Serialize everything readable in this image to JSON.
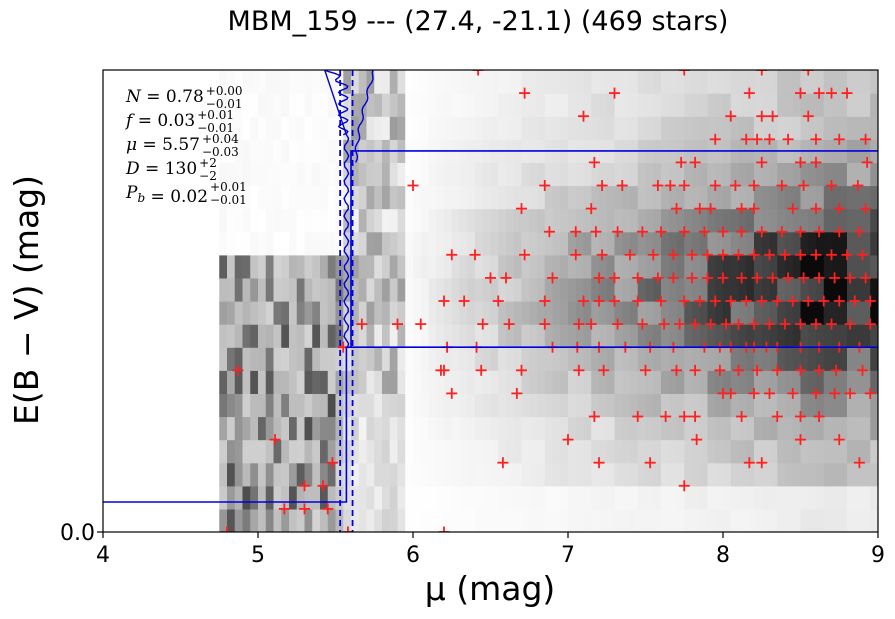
{
  "chart_data": {
    "type": "heatmap",
    "title": "MBM_159 --- (27.4, -21.1) (469 stars)",
    "xlabel": "μ (mag)",
    "ylabel": "E(B − V) (mag)",
    "xlim": [
      4,
      9
    ],
    "ylim": [
      0,
      1
    ],
    "x_ticks": [
      "4",
      "5",
      "6",
      "7",
      "8",
      "9"
    ],
    "y_ticks": [
      "0.0"
    ],
    "colormap": "greys",
    "marker_color": "#ff2020",
    "line_color": "#0000dd",
    "annotations": [
      {
        "sym": "N",
        "val": "0.78",
        "sup": "+0.00",
        "sub": "−0.01"
      },
      {
        "sym": "f",
        "val": "0.03",
        "sup": "+0.01",
        "sub": "−0.01"
      },
      {
        "sym": "μ",
        "val": "5.57",
        "sup": "+0.04",
        "sub": "−0.03"
      },
      {
        "sym": "D",
        "val": "130",
        "sup": "+2",
        "sub": "−2"
      },
      {
        "sym": "P_b",
        "val": "0.02",
        "sup": "+0.01",
        "sub": "−0.01"
      }
    ],
    "step_model": [
      {
        "mu": 4.0,
        "ebv": 0.065
      },
      {
        "mu": 5.57,
        "ebv": 0.065
      },
      {
        "mu": 5.57,
        "ebv": 0.4
      },
      {
        "mu": 9.0,
        "ebv": 0.4
      }
    ],
    "upper_step": [
      {
        "mu": 5.6,
        "ebv": 0.4
      },
      {
        "mu": 5.6,
        "ebv": 0.825
      },
      {
        "mu": 9.0,
        "ebv": 0.825
      }
    ],
    "mu_median": 5.57,
    "mu_bounds": [
      5.53,
      5.61
    ],
    "stars": [
      [
        4.8,
        0.0
      ],
      [
        6.2,
        0.0
      ],
      [
        5.58,
        0.0
      ],
      [
        5.17,
        0.05
      ],
      [
        5.3,
        0.05
      ],
      [
        5.45,
        0.05
      ],
      [
        5.3,
        0.1
      ],
      [
        5.42,
        0.1
      ],
      [
        7.75,
        0.1
      ],
      [
        5.48,
        0.15
      ],
      [
        6.58,
        0.15
      ],
      [
        7.2,
        0.15
      ],
      [
        7.53,
        0.15
      ],
      [
        8.17,
        0.15
      ],
      [
        8.25,
        0.15
      ],
      [
        8.88,
        0.15
      ],
      [
        5.11,
        0.2
      ],
      [
        7.0,
        0.2
      ],
      [
        7.83,
        0.2
      ],
      [
        8.5,
        0.2
      ],
      [
        8.75,
        0.2
      ],
      [
        7.17,
        0.25
      ],
      [
        7.45,
        0.25
      ],
      [
        7.63,
        0.25
      ],
      [
        7.75,
        0.25
      ],
      [
        7.82,
        0.25
      ],
      [
        8.12,
        0.25
      ],
      [
        8.35,
        0.25
      ],
      [
        8.5,
        0.25
      ],
      [
        8.62,
        0.25
      ],
      [
        6.25,
        0.3
      ],
      [
        6.67,
        0.3
      ],
      [
        8.0,
        0.3
      ],
      [
        8.05,
        0.3
      ],
      [
        8.2,
        0.3
      ],
      [
        8.3,
        0.3
      ],
      [
        8.45,
        0.3
      ],
      [
        8.6,
        0.3
      ],
      [
        8.72,
        0.3
      ],
      [
        8.82,
        0.3
      ],
      [
        8.95,
        0.3
      ],
      [
        4.87,
        0.35
      ],
      [
        6.18,
        0.35
      ],
      [
        6.2,
        0.35
      ],
      [
        6.44,
        0.35
      ],
      [
        6.7,
        0.35
      ],
      [
        7.07,
        0.35
      ],
      [
        7.23,
        0.35
      ],
      [
        7.5,
        0.35
      ],
      [
        7.7,
        0.35
      ],
      [
        7.82,
        0.35
      ],
      [
        7.98,
        0.35
      ],
      [
        8.1,
        0.35
      ],
      [
        8.22,
        0.35
      ],
      [
        8.35,
        0.35
      ],
      [
        8.5,
        0.35
      ],
      [
        8.62,
        0.35
      ],
      [
        8.73,
        0.35
      ],
      [
        8.9,
        0.35
      ],
      [
        5.55,
        0.4
      ],
      [
        6.22,
        0.4
      ],
      [
        6.41,
        0.4
      ],
      [
        6.9,
        0.4
      ],
      [
        7.06,
        0.4
      ],
      [
        7.2,
        0.4
      ],
      [
        7.37,
        0.4
      ],
      [
        7.53,
        0.4
      ],
      [
        7.68,
        0.4
      ],
      [
        7.88,
        0.4
      ],
      [
        7.98,
        0.4
      ],
      [
        8.05,
        0.4
      ],
      [
        8.15,
        0.4
      ],
      [
        8.2,
        0.4
      ],
      [
        8.28,
        0.4
      ],
      [
        8.35,
        0.4
      ],
      [
        8.5,
        0.4
      ],
      [
        8.62,
        0.4
      ],
      [
        8.75,
        0.4
      ],
      [
        8.88,
        0.4
      ],
      [
        5.67,
        0.45
      ],
      [
        5.9,
        0.45
      ],
      [
        6.05,
        0.45
      ],
      [
        6.45,
        0.45
      ],
      [
        6.62,
        0.45
      ],
      [
        6.85,
        0.45
      ],
      [
        7.07,
        0.45
      ],
      [
        7.15,
        0.45
      ],
      [
        7.32,
        0.45
      ],
      [
        7.48,
        0.45
      ],
      [
        7.62,
        0.45
      ],
      [
        7.72,
        0.45
      ],
      [
        7.82,
        0.45
      ],
      [
        7.92,
        0.45
      ],
      [
        8.02,
        0.45
      ],
      [
        8.1,
        0.45
      ],
      [
        8.2,
        0.45
      ],
      [
        8.3,
        0.45
      ],
      [
        8.4,
        0.45
      ],
      [
        8.5,
        0.45
      ],
      [
        8.6,
        0.45
      ],
      [
        8.7,
        0.45
      ],
      [
        8.82,
        0.45
      ],
      [
        8.95,
        0.45
      ],
      [
        6.2,
        0.5
      ],
      [
        6.33,
        0.5
      ],
      [
        6.55,
        0.5
      ],
      [
        6.85,
        0.5
      ],
      [
        7.1,
        0.5
      ],
      [
        7.2,
        0.5
      ],
      [
        7.3,
        0.5
      ],
      [
        7.45,
        0.5
      ],
      [
        7.6,
        0.5
      ],
      [
        7.75,
        0.5
      ],
      [
        7.85,
        0.5
      ],
      [
        7.95,
        0.5
      ],
      [
        8.05,
        0.5
      ],
      [
        8.15,
        0.5
      ],
      [
        8.25,
        0.5
      ],
      [
        8.35,
        0.5
      ],
      [
        8.45,
        0.5
      ],
      [
        8.55,
        0.5
      ],
      [
        8.65,
        0.5
      ],
      [
        8.75,
        0.5
      ],
      [
        8.85,
        0.5
      ],
      [
        8.95,
        0.5
      ],
      [
        6.5,
        0.55
      ],
      [
        6.6,
        0.55
      ],
      [
        6.9,
        0.55
      ],
      [
        7.2,
        0.55
      ],
      [
        7.3,
        0.55
      ],
      [
        7.45,
        0.55
      ],
      [
        7.58,
        0.55
      ],
      [
        7.68,
        0.55
      ],
      [
        7.8,
        0.55
      ],
      [
        7.9,
        0.55
      ],
      [
        8.0,
        0.55
      ],
      [
        8.12,
        0.55
      ],
      [
        8.22,
        0.55
      ],
      [
        8.32,
        0.55
      ],
      [
        8.42,
        0.55
      ],
      [
        8.52,
        0.55
      ],
      [
        8.62,
        0.55
      ],
      [
        8.72,
        0.55
      ],
      [
        8.82,
        0.55
      ],
      [
        8.92,
        0.55
      ],
      [
        6.25,
        0.6
      ],
      [
        6.4,
        0.6
      ],
      [
        6.72,
        0.6
      ],
      [
        7.05,
        0.6
      ],
      [
        7.22,
        0.6
      ],
      [
        7.4,
        0.6
      ],
      [
        7.55,
        0.6
      ],
      [
        7.68,
        0.6
      ],
      [
        7.8,
        0.6
      ],
      [
        7.9,
        0.6
      ],
      [
        8.0,
        0.6
      ],
      [
        8.1,
        0.6
      ],
      [
        8.2,
        0.6
      ],
      [
        8.3,
        0.6
      ],
      [
        8.4,
        0.6
      ],
      [
        8.5,
        0.6
      ],
      [
        8.6,
        0.6
      ],
      [
        8.7,
        0.6
      ],
      [
        8.8,
        0.6
      ],
      [
        8.9,
        0.6
      ],
      [
        6.88,
        0.65
      ],
      [
        7.05,
        0.65
      ],
      [
        7.18,
        0.65
      ],
      [
        7.32,
        0.65
      ],
      [
        7.48,
        0.65
      ],
      [
        7.6,
        0.65
      ],
      [
        7.75,
        0.65
      ],
      [
        7.88,
        0.65
      ],
      [
        8.0,
        0.65
      ],
      [
        8.12,
        0.65
      ],
      [
        8.25,
        0.65
      ],
      [
        8.38,
        0.65
      ],
      [
        8.5,
        0.65
      ],
      [
        8.62,
        0.65
      ],
      [
        8.75,
        0.65
      ],
      [
        8.88,
        0.65
      ],
      [
        6.7,
        0.7
      ],
      [
        7.15,
        0.7
      ],
      [
        7.7,
        0.7
      ],
      [
        7.85,
        0.7
      ],
      [
        7.92,
        0.7
      ],
      [
        8.12,
        0.7
      ],
      [
        8.2,
        0.7
      ],
      [
        8.45,
        0.7
      ],
      [
        8.6,
        0.7
      ],
      [
        8.75,
        0.7
      ],
      [
        8.92,
        0.7
      ],
      [
        6.0,
        0.75
      ],
      [
        6.85,
        0.75
      ],
      [
        7.22,
        0.75
      ],
      [
        7.35,
        0.75
      ],
      [
        7.58,
        0.75
      ],
      [
        7.66,
        0.75
      ],
      [
        7.75,
        0.75
      ],
      [
        7.95,
        0.75
      ],
      [
        8.08,
        0.75
      ],
      [
        8.2,
        0.75
      ],
      [
        8.38,
        0.75
      ],
      [
        8.52,
        0.75
      ],
      [
        8.7,
        0.75
      ],
      [
        8.87,
        0.75
      ],
      [
        7.17,
        0.8
      ],
      [
        7.73,
        0.8
      ],
      [
        7.82,
        0.8
      ],
      [
        8.25,
        0.8
      ],
      [
        8.5,
        0.8
      ],
      [
        8.6,
        0.8
      ],
      [
        8.93,
        0.8
      ],
      [
        7.95,
        0.85
      ],
      [
        8.15,
        0.85
      ],
      [
        8.22,
        0.85
      ],
      [
        8.3,
        0.85
      ],
      [
        8.42,
        0.85
      ],
      [
        8.6,
        0.85
      ],
      [
        8.75,
        0.85
      ],
      [
        8.92,
        0.85
      ],
      [
        7.1,
        0.9
      ],
      [
        8.05,
        0.9
      ],
      [
        8.25,
        0.9
      ],
      [
        8.32,
        0.9
      ],
      [
        8.55,
        0.9
      ],
      [
        6.72,
        0.95
      ],
      [
        7.3,
        0.95
      ],
      [
        8.17,
        0.95
      ],
      [
        8.5,
        0.95
      ],
      [
        8.62,
        0.95
      ],
      [
        8.7,
        0.95
      ],
      [
        8.8,
        0.95
      ],
      [
        6.42,
        1.0
      ],
      [
        7.75,
        1.0
      ],
      [
        8.25,
        1.0
      ],
      [
        8.55,
        1.0
      ]
    ]
  }
}
